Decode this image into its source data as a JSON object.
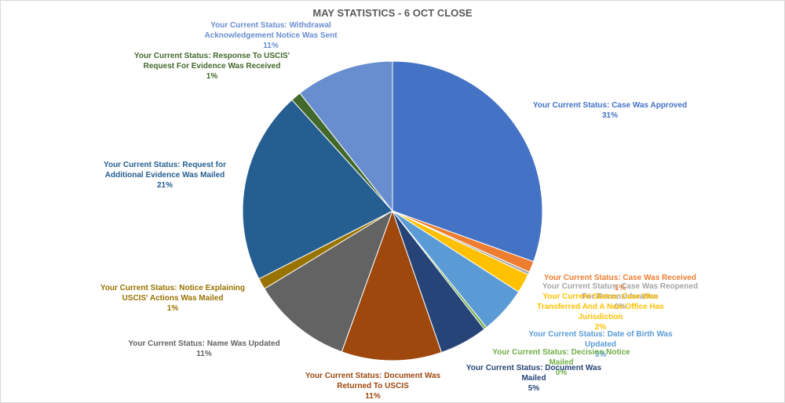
{
  "chart_data": {
    "type": "pie",
    "title": "MAY STATISTICS - 6 OCT CLOSE",
    "slices": [
      {
        "label": "Your Current Status: Case Was Approved",
        "value": 31,
        "pct_label": "31%",
        "color": "#4472c4"
      },
      {
        "label": "Your Current Status: Case Was Received",
        "value": 1,
        "pct_label": "1%",
        "color": "#ed7d31"
      },
      {
        "label": "Your Current Status: Case Was Reopened For Reconsideration",
        "value": 0,
        "pct_label": "0%",
        "color": "#a5a5a5"
      },
      {
        "label": "Your Current Status: Case Was Transferred And A New Office Has Jurisdiction",
        "value": 2,
        "pct_label": "2%",
        "color": "#ffc000"
      },
      {
        "label": "Your Current Status: Date of Birth Was Updated",
        "value": 5,
        "pct_label": "5%",
        "color": "#5b9bd5"
      },
      {
        "label": "Your Current Status: Decision Notice Mailed",
        "value": 0,
        "pct_label": "0%",
        "color": "#70ad47"
      },
      {
        "label": "Your Current Status: Document Was Mailed",
        "value": 5,
        "pct_label": "5%",
        "color": "#264478"
      },
      {
        "label": "Your Current Status: Document Was Returned To USCIS",
        "value": 11,
        "pct_label": "11%",
        "color": "#9e480e"
      },
      {
        "label": "Your Current Status: Name Was Updated",
        "value": 11,
        "pct_label": "11%",
        "color": "#636363"
      },
      {
        "label": "Your Current Status: Notice Explaining USCIS' Actions Was Mailed",
        "value": 1,
        "pct_label": "1%",
        "color": "#997300"
      },
      {
        "label": "Your Current Status: Request for Additional  Evidence Was Mailed",
        "value": 21,
        "pct_label": "21%",
        "color": "#255e91"
      },
      {
        "label": "Your Current Status: Response To USCIS' Request For Evidence Was Received",
        "value": 1,
        "pct_label": "1%",
        "color": "#43682b"
      },
      {
        "label": "Your Current Status: Withdrawal Acknowledgement Notice Was Sent",
        "value": 11,
        "pct_label": "11%",
        "color": "#698ed0"
      }
    ],
    "label_texts": [
      "Your Current Status: Case Was Approved\n31%",
      "Your Current Status: Case Was Received\n1%",
      "Your Current Status: Case Was Reopened\nFor Reconsideration\n0%",
      "Your Current Status: Case Was\nTransferred And A New Office Has\nJurisdiction\n2%",
      "Your Current Status: Date of Birth Was\nUpdated\n5%",
      "Your Current Status: Decision Notice\nMailed\n0%",
      "Your Current Status: Document Was\nMailed\n5%",
      "Your Current Status: Document Was\nReturned To USCIS\n11%",
      "Your Current Status: Name Was Updated\n11%",
      "Your Current Status: Notice Explaining\nUSCIS' Actions Was Mailed\n1%",
      "Your Current Status: Request for\nAdditional  Evidence Was Mailed\n21%",
      "Your Current Status: Response To USCIS'\nRequest For Evidence Was Received\n1%",
      "Your Current Status: Withdrawal\nAcknowledgement Notice Was Sent\n11%"
    ],
    "legend": "none"
  }
}
